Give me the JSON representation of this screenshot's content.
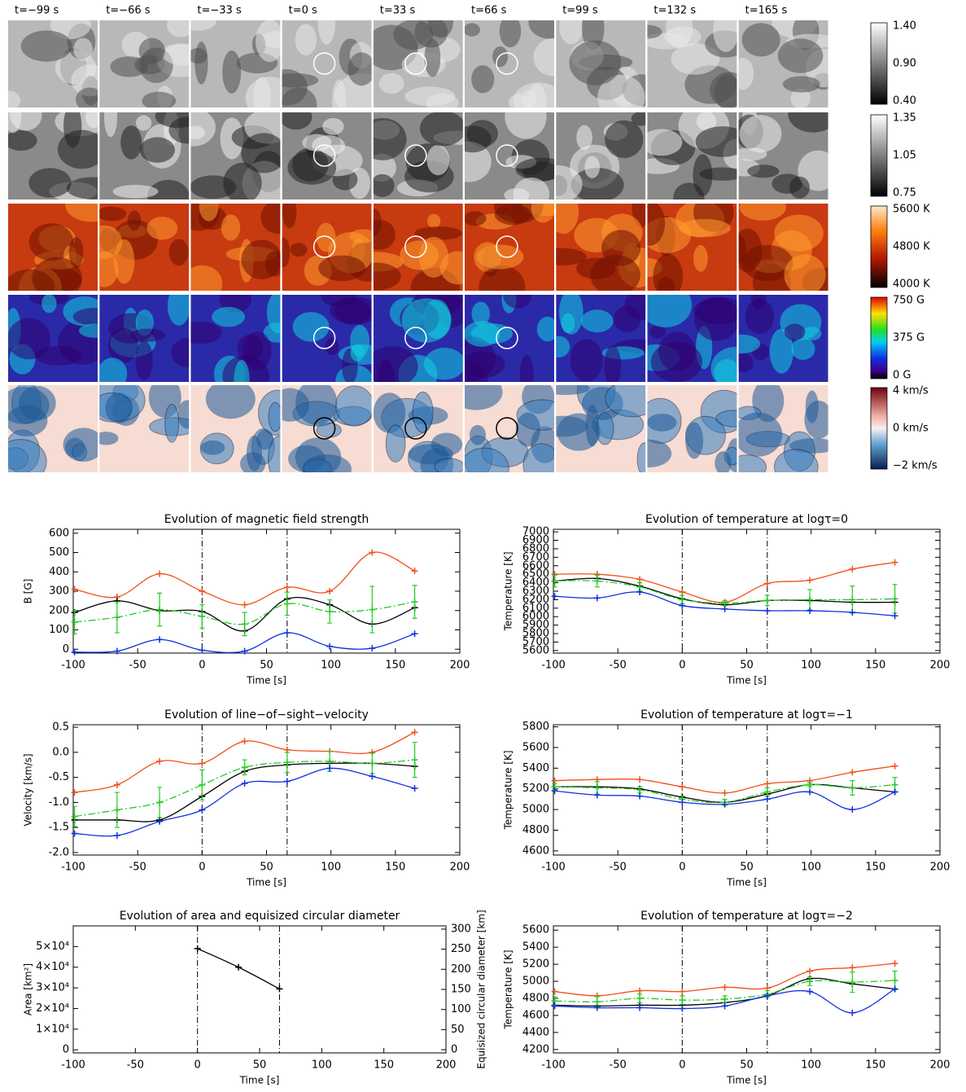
{
  "image_grid": {
    "times": [
      "t=−99 s",
      "t=−66 s",
      "t=−33 s",
      "t=0 s",
      "t=33 s",
      "t=66 s",
      "t=99 s",
      "t=132 s",
      "t=165 s"
    ],
    "colorbars": [
      [
        "1.40",
        "0.90",
        "0.40"
      ],
      [
        "1.35",
        "1.05",
        "0.75"
      ],
      [
        "5600 K",
        "4800 K",
        "4000 K"
      ],
      [
        "750 G",
        "375 G",
        "0 G"
      ],
      [
        "4 km/s",
        "0 km/s",
        "−2 km/s"
      ]
    ]
  },
  "chart_data": [
    {
      "type": "line",
      "title": "Evolution of magnetic field strength",
      "x_label": "Time [s]",
      "y_label": "B [G]",
      "xlim": [
        -100,
        200
      ],
      "xticks": [
        -100,
        -50,
        0,
        50,
        100,
        150,
        200
      ],
      "ylim": [
        -20,
        620
      ],
      "yticks": [
        0,
        100,
        200,
        300,
        400,
        500,
        600
      ],
      "vlines": [
        0,
        66
      ],
      "x": [
        -99,
        -66,
        -33,
        0,
        33,
        66,
        99,
        132,
        165
      ],
      "series": [
        {
          "color": "#f0501a",
          "values": [
            310,
            270,
            390,
            300,
            230,
            320,
            300,
            500,
            405
          ]
        },
        {
          "color": "#000000",
          "values": [
            190,
            250,
            200,
            195,
            95,
            260,
            230,
            130,
            215
          ]
        },
        {
          "color": "#22cc22",
          "values": [
            140,
            165,
            205,
            170,
            130,
            235,
            195,
            205,
            245
          ],
          "errors": [
            60,
            80,
            85,
            60,
            60,
            60,
            60,
            120,
            85
          ]
        },
        {
          "color": "#1030e0",
          "values": [
            -15,
            -10,
            50,
            -5,
            -10,
            85,
            15,
            5,
            80
          ]
        }
      ]
    },
    {
      "type": "line",
      "title": "Evolution of temperature at logτ=0",
      "x_label": "Time [s]",
      "y_label": "Temperature [K]",
      "xlim": [
        -100,
        200
      ],
      "xticks": [
        -100,
        -50,
        0,
        50,
        100,
        150,
        200
      ],
      "ylim": [
        5570,
        7030
      ],
      "yticks": [
        5600,
        5700,
        5800,
        5900,
        6000,
        6100,
        6200,
        6300,
        6400,
        6500,
        6600,
        6700,
        6800,
        6900,
        7000
      ],
      "vlines": [
        0,
        66
      ],
      "x": [
        -99,
        -66,
        -33,
        0,
        33,
        66,
        99,
        132,
        165
      ],
      "series": [
        {
          "color": "#f0501a",
          "values": [
            6500,
            6500,
            6440,
            6290,
            6170,
            6390,
            6430,
            6560,
            6640
          ]
        },
        {
          "color": "#000000",
          "values": [
            6420,
            6450,
            6360,
            6210,
            6140,
            6190,
            6190,
            6170,
            6170
          ]
        },
        {
          "color": "#22cc22",
          "values": [
            6420,
            6420,
            6350,
            6200,
            6160,
            6190,
            6200,
            6200,
            6210
          ],
          "errors": [
            70,
            70,
            50,
            50,
            30,
            60,
            120,
            160,
            170
          ]
        },
        {
          "color": "#1030e0",
          "values": [
            6240,
            6220,
            6290,
            6130,
            6090,
            6070,
            6070,
            6050,
            6010
          ]
        }
      ]
    },
    {
      "type": "line",
      "title": "Evolution of line−of−sight−velocity",
      "x_label": "Time [s]",
      "y_label": "Velocity [km/s]",
      "xlim": [
        -100,
        200
      ],
      "xticks": [
        -100,
        -50,
        0,
        50,
        100,
        150,
        200
      ],
      "ylim": [
        -2.05,
        0.55
      ],
      "yticks": [
        {
          "value": -2,
          "label": "-2.0"
        },
        -1.5,
        {
          "value": -1,
          "label": "-1.0"
        },
        -0.5,
        {
          "value": 0,
          "label": "0.0"
        },
        0.5
      ],
      "vlines": [
        0,
        66
      ],
      "x": [
        -99,
        -66,
        -33,
        0,
        33,
        66,
        99,
        132,
        165
      ],
      "series": [
        {
          "color": "#f0501a",
          "values": [
            -0.8,
            -0.65,
            -0.18,
            -0.22,
            0.22,
            0.05,
            0.02,
            0.0,
            0.4
          ]
        },
        {
          "color": "#000000",
          "values": [
            -1.35,
            -1.35,
            -1.35,
            -0.88,
            -0.38,
            -0.25,
            -0.22,
            -0.22,
            -0.28
          ]
        },
        {
          "color": "#22cc22",
          "values": [
            -1.28,
            -1.15,
            -1.0,
            -0.65,
            -0.3,
            -0.2,
            -0.18,
            -0.22,
            -0.15
          ],
          "errors": [
            0.2,
            0.35,
            0.3,
            0.3,
            0.15,
            0.2,
            0.2,
            0.2,
            0.35
          ]
        },
        {
          "color": "#1030e0",
          "values": [
            -1.62,
            -1.66,
            -1.38,
            -1.15,
            -0.62,
            -0.58,
            -0.32,
            -0.48,
            -0.72
          ]
        }
      ]
    },
    {
      "type": "line",
      "title": "Evolution of temperature at logτ=−1",
      "x_label": "Time [s]",
      "y_label": "Temperature [K]",
      "xlim": [
        -100,
        200
      ],
      "xticks": [
        -100,
        -50,
        0,
        50,
        100,
        150,
        200
      ],
      "ylim": [
        4560,
        5820
      ],
      "yticks": [
        4600,
        4800,
        5000,
        5200,
        5400,
        5600,
        5800
      ],
      "vlines": [
        0,
        66
      ],
      "x": [
        -99,
        -66,
        -33,
        0,
        33,
        66,
        99,
        132,
        165
      ],
      "series": [
        {
          "color": "#f0501a",
          "values": [
            5280,
            5290,
            5290,
            5220,
            5160,
            5250,
            5280,
            5360,
            5420
          ]
        },
        {
          "color": "#000000",
          "values": [
            5220,
            5220,
            5200,
            5120,
            5070,
            5150,
            5240,
            5210,
            5170
          ]
        },
        {
          "color": "#22cc22",
          "values": [
            5220,
            5210,
            5190,
            5100,
            5070,
            5170,
            5240,
            5210,
            5240
          ],
          "errors": [
            30,
            60,
            30,
            30,
            30,
            40,
            20,
            70,
            70
          ]
        },
        {
          "color": "#1030e0",
          "values": [
            5180,
            5140,
            5130,
            5070,
            5050,
            5100,
            5170,
            5000,
            5170
          ]
        }
      ]
    },
    {
      "type": "line",
      "title": "Evolution of area and equisized circular diameter",
      "x_label": "Time [s]",
      "y_label": "Area [km²]",
      "y2_label": "Equisized circular diameter [km]",
      "xlim": [
        -100,
        200
      ],
      "xticks": [
        -100,
        -50,
        0,
        50,
        100,
        150,
        200
      ],
      "ylim": [
        -1500,
        60000
      ],
      "yticks": [
        0,
        {
          "value": 10000,
          "label": "1×10⁴"
        },
        {
          "value": 20000,
          "label": "2×10⁴"
        },
        {
          "value": 30000,
          "label": "3×10⁴"
        },
        {
          "value": 40000,
          "label": "4×10⁴"
        },
        {
          "value": 50000,
          "label": "5×10⁴"
        }
      ],
      "y2lim": [
        -8,
        308
      ],
      "y2ticks": [
        0,
        50,
        100,
        150,
        200,
        250,
        300
      ],
      "vlines": [
        0,
        66
      ],
      "x": [
        0,
        33,
        66
      ],
      "series": [
        {
          "color": "#000000",
          "values": [
            49000,
            40000,
            29500
          ]
        }
      ]
    },
    {
      "type": "line",
      "title": "Evolution of temperature at logτ=−2",
      "x_label": "Time [s]",
      "y_label": "Temperature [K]",
      "xlim": [
        -100,
        200
      ],
      "xticks": [
        -100,
        -50,
        0,
        50,
        100,
        150,
        200
      ],
      "ylim": [
        4160,
        5650
      ],
      "yticks": [
        4200,
        4400,
        4600,
        4800,
        5000,
        5200,
        5400,
        5600
      ],
      "vlines": [
        0,
        66
      ],
      "x": [
        -99,
        -66,
        -33,
        0,
        33,
        66,
        99,
        132,
        165
      ],
      "series": [
        {
          "color": "#f0501a",
          "values": [
            4880,
            4830,
            4890,
            4880,
            4930,
            4920,
            5120,
            5160,
            5210
          ]
        },
        {
          "color": "#000000",
          "values": [
            4720,
            4710,
            4720,
            4720,
            4750,
            4830,
            5030,
            4970,
            4910
          ]
        },
        {
          "color": "#22cc22",
          "values": [
            4770,
            4760,
            4800,
            4780,
            4790,
            4850,
            5000,
            4990,
            5010
          ],
          "errors": [
            50,
            60,
            50,
            50,
            40,
            40,
            50,
            120,
            110
          ]
        },
        {
          "color": "#1030e0",
          "values": [
            4710,
            4690,
            4690,
            4680,
            4710,
            4830,
            4880,
            4630,
            4910
          ]
        }
      ]
    }
  ]
}
